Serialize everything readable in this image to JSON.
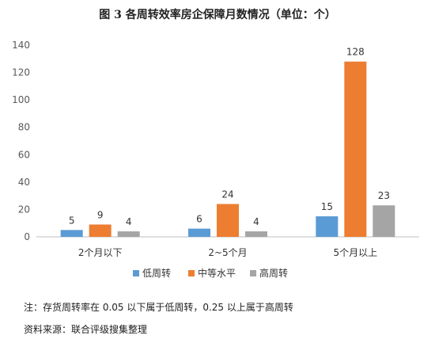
{
  "chart_data": {
    "type": "bar",
    "title": "图 3   各周转效率房企保障月数情况（单位：个）",
    "categories": [
      "2个月以下",
      "2~5个月",
      "5个月以上"
    ],
    "series": [
      {
        "name": "低周转",
        "values": [
          5,
          6,
          15
        ],
        "color": "#5B9BD5"
      },
      {
        "name": "中等水平",
        "values": [
          9,
          24,
          128
        ],
        "color": "#ED7D31"
      },
      {
        "name": "高周转",
        "values": [
          4,
          4,
          23
        ],
        "color": "#A5A5A5"
      }
    ],
    "ylim": [
      0,
      140
    ],
    "yticks": [
      0,
      20,
      40,
      60,
      80,
      100,
      120,
      140
    ],
    "grid": false,
    "legend_position": "bottom"
  },
  "notes": {
    "note": "注：存货周转率在 0.05 以下属于低周转，0.25 以上属于高周转",
    "source": "资料来源：联合评级搜集整理"
  }
}
